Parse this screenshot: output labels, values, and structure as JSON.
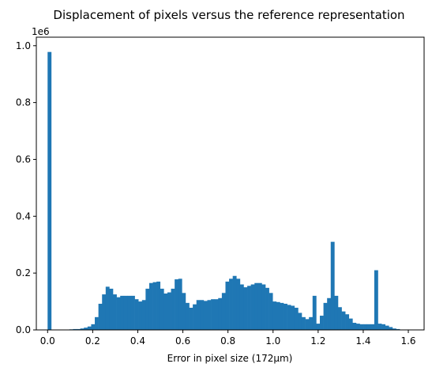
{
  "chart_data": {
    "type": "bar",
    "title": "Displacement of pixels versus the reference representation",
    "xlabel": "Error in pixel size (172µm)",
    "ylabel": "",
    "y_offset_text": "1e6",
    "y_scale": 1000000,
    "xlim": [
      -0.05,
      1.67
    ],
    "ylim": [
      0,
      1030000
    ],
    "grid": false,
    "bar_color": "#1f77b4",
    "xticks": [
      0.0,
      0.2,
      0.4,
      0.6,
      0.8,
      1.0,
      1.2,
      1.4,
      1.6
    ],
    "xtick_labels": [
      "0.0",
      "0.2",
      "0.4",
      "0.6",
      "0.8",
      "1.0",
      "1.2",
      "1.4",
      "1.6"
    ],
    "yticks": [
      0,
      200000,
      400000,
      600000,
      800000,
      1000000
    ],
    "ytick_labels": [
      "0.0",
      "0.2",
      "0.4",
      "0.6",
      "0.8",
      "1.0"
    ],
    "bin_width": 0.0161,
    "bin_starts": [
      0.0,
      0.0161,
      0.0322,
      0.0483,
      0.0644,
      0.0805,
      0.0966,
      0.1127,
      0.1288,
      0.1449,
      0.161,
      0.1771,
      0.1932,
      0.2093,
      0.2254,
      0.2415,
      0.2576,
      0.2737,
      0.2898,
      0.3059,
      0.322,
      0.3381,
      0.3542,
      0.3703,
      0.3864,
      0.4025,
      0.4186,
      0.4347,
      0.4508,
      0.4669,
      0.483,
      0.4991,
      0.5152,
      0.5313,
      0.5474,
      0.5635,
      0.5796,
      0.5957,
      0.6118,
      0.6279,
      0.644,
      0.6601,
      0.6762,
      0.6923,
      0.7084,
      0.7245,
      0.7406,
      0.7567,
      0.7728,
      0.7889,
      0.805,
      0.8211,
      0.8372,
      0.8533,
      0.8694,
      0.8855,
      0.9016,
      0.9177,
      0.9338,
      0.9499,
      0.966,
      0.9821,
      0.9982,
      1.0143,
      1.0304,
      1.0465,
      1.0626,
      1.0787,
      1.0948,
      1.1109,
      1.127,
      1.1431,
      1.1592,
      1.1753,
      1.1914,
      1.2075,
      1.2236,
      1.2397,
      1.2558,
      1.2719,
      1.288,
      1.3041,
      1.3202,
      1.3363,
      1.3524,
      1.3685,
      1.3846,
      1.4007,
      1.4168,
      1.4329,
      1.449,
      1.4651,
      1.4812,
      1.4973,
      1.5134,
      1.5295,
      1.5456,
      1.5617
    ],
    "counts": [
      978000,
      0,
      0,
      0,
      0,
      0,
      2000,
      3000,
      3000,
      5000,
      8000,
      12000,
      20000,
      45000,
      92000,
      125000,
      152000,
      145000,
      125000,
      115000,
      120000,
      120000,
      120000,
      120000,
      108000,
      100000,
      105000,
      145000,
      165000,
      168000,
      170000,
      145000,
      128000,
      132000,
      145000,
      178000,
      180000,
      130000,
      95000,
      78000,
      90000,
      105000,
      105000,
      102000,
      105000,
      108000,
      108000,
      112000,
      130000,
      170000,
      180000,
      190000,
      180000,
      160000,
      150000,
      155000,
      160000,
      165000,
      165000,
      160000,
      148000,
      130000,
      100000,
      98000,
      95000,
      92000,
      88000,
      85000,
      78000,
      60000,
      45000,
      38000,
      45000,
      120000,
      22000,
      50000,
      95000,
      112000,
      310000,
      120000,
      80000,
      65000,
      55000,
      40000,
      25000,
      22000,
      20000,
      20000,
      20000,
      20000,
      210000,
      22000,
      20000,
      15000,
      10000,
      5000,
      3000,
      1000
    ]
  }
}
